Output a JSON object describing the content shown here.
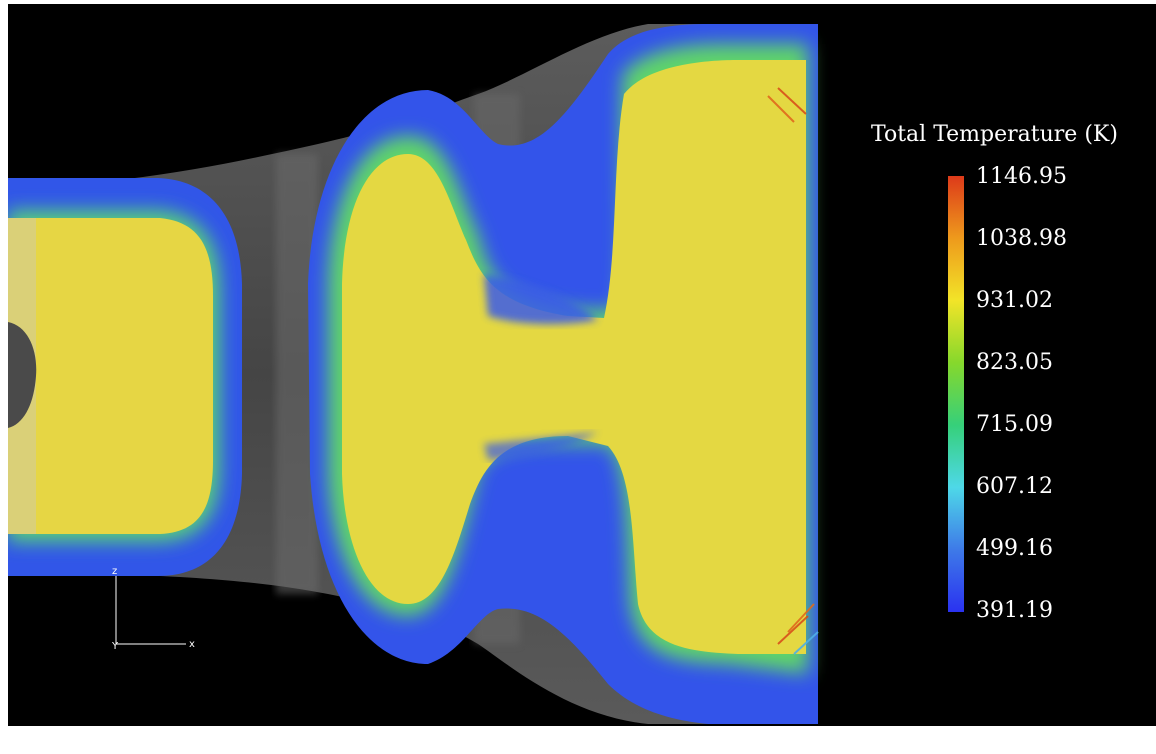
{
  "legend": {
    "title": "Total Temperature (K)",
    "ticks": [
      "1146.95",
      "1038.98",
      "931.02",
      "823.05",
      "715.09",
      "607.12",
      "499.16",
      "391.19"
    ],
    "colormap": [
      "#dd3a1a",
      "#ee9a1c",
      "#f2e428",
      "#86d82c",
      "#36d07a",
      "#4ed8e8",
      "#3e7ae8",
      "#2a32f0"
    ]
  },
  "axes_triad": {
    "vertical": "z",
    "horizontal": "x",
    "origin": "Y"
  }
}
